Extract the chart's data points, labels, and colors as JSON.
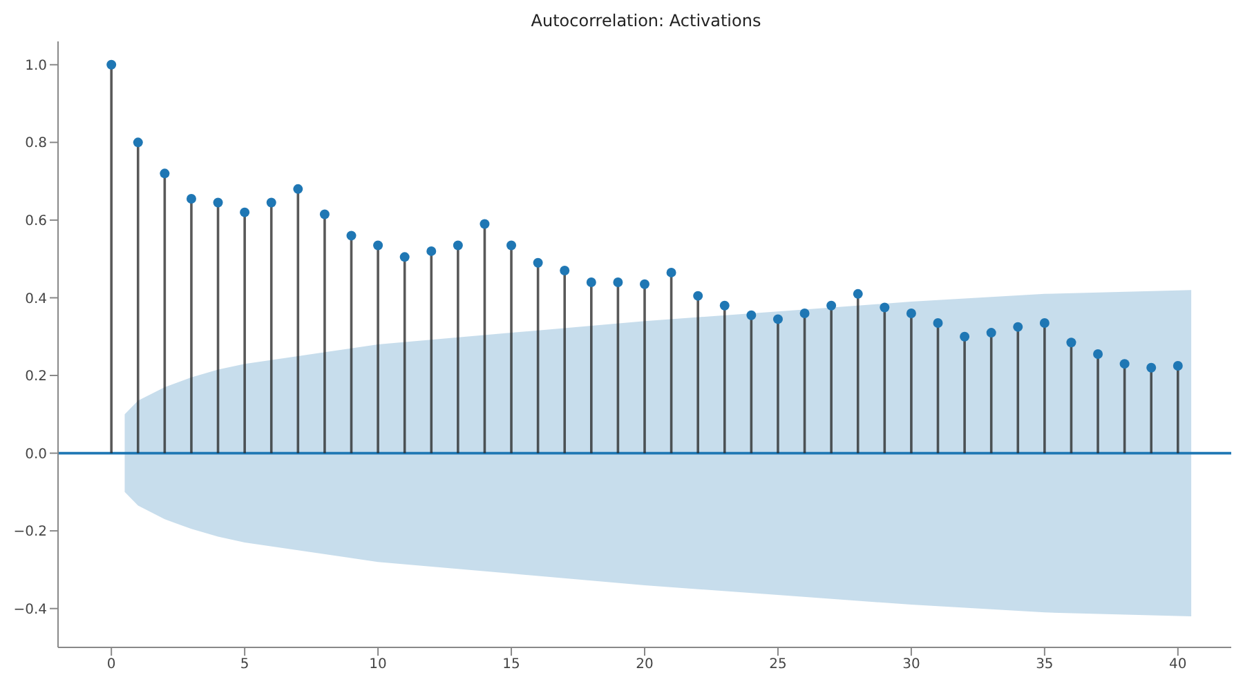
{
  "chart_data": {
    "type": "lollipop",
    "title": "Autocorrelation: Activations",
    "x": [
      0,
      1,
      2,
      3,
      4,
      5,
      6,
      7,
      8,
      9,
      10,
      11,
      12,
      13,
      14,
      15,
      16,
      17,
      18,
      19,
      20,
      21,
      22,
      23,
      24,
      25,
      26,
      27,
      28,
      29,
      30,
      31,
      32,
      33,
      34,
      35,
      36,
      37,
      38,
      39,
      40
    ],
    "series": [
      {
        "color": "#1f77b4",
        "values": [
          1.0,
          0.8,
          0.72,
          0.655,
          0.645,
          0.62,
          0.645,
          0.68,
          0.615,
          0.56,
          0.535,
          0.505,
          0.52,
          0.535,
          0.59,
          0.535,
          0.49,
          0.47,
          0.44,
          0.44,
          0.435,
          0.465,
          0.405,
          0.38,
          0.355,
          0.345,
          0.36,
          0.38,
          0.41,
          0.375,
          0.36,
          0.335,
          0.3,
          0.31,
          0.325,
          0.335,
          0.285,
          0.255,
          0.23,
          0.22,
          0.225
        ]
      },
      {
        "type": "line",
        "color": "#1f77b4",
        "marker": "none",
        "x": [
          -2,
          0.5,
          1,
          2,
          3,
          4,
          5,
          7,
          10,
          15,
          20,
          25,
          30,
          35,
          40.5,
          42
        ],
        "values": [
          0,
          0,
          0,
          0,
          0,
          0,
          0,
          0,
          0,
          0,
          0,
          0,
          0,
          0,
          0,
          0
        ],
        "lower": [
          null,
          -0.1,
          -0.135,
          -0.17,
          -0.195,
          -0.215,
          -0.23,
          -0.25,
          -0.28,
          -0.31,
          -0.34,
          -0.365,
          -0.39,
          -0.41,
          -0.42,
          null
        ],
        "upper": [
          null,
          0.1,
          0.135,
          0.17,
          0.195,
          0.215,
          0.23,
          0.25,
          0.28,
          0.31,
          0.34,
          0.365,
          0.39,
          0.41,
          0.42,
          null
        ]
      }
    ],
    "xlim": [
      -2,
      42
    ],
    "xticks": [
      0,
      5,
      10,
      15,
      20,
      25,
      30,
      35,
      40
    ],
    "ylim": [
      -0.5,
      1.06
    ],
    "yticks": [
      -0.4,
      -0.2,
      {
        "value": 0,
        "label": "0.0"
      },
      0.2,
      0.4,
      0.6,
      0.8,
      {
        "value": 1,
        "label": "1.0"
      }
    ],
    "marker": "circle",
    "grid": false,
    "legend": false
  }
}
